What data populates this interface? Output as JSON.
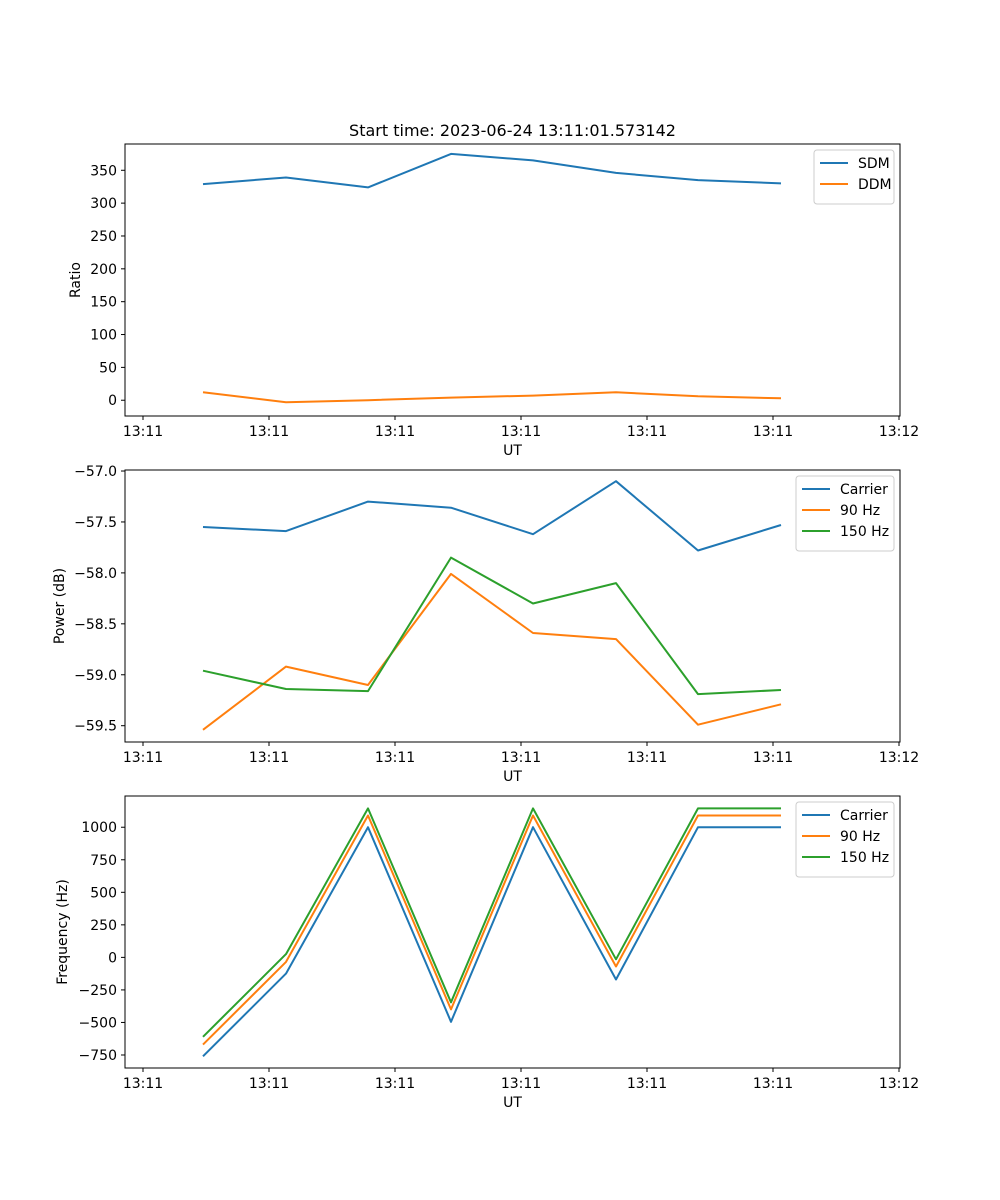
{
  "title": "Start time: 2023-06-24 13:11:01.573142",
  "chart_data": [
    {
      "type": "line",
      "xlabel": "UT",
      "ylabel": "Ratio",
      "x_tick_labels": [
        "13:11",
        "13:11",
        "13:11",
        "13:11",
        "13:11",
        "13:11",
        "13:12"
      ],
      "y_ticks": [
        0,
        50,
        100,
        150,
        200,
        250,
        300,
        350
      ],
      "ylim": [
        -24,
        390
      ],
      "legend_position": "top-right",
      "series": [
        {
          "name": "SDM",
          "color": "#1f77b4",
          "values": [
            329,
            339,
            324,
            375,
            365,
            346,
            335,
            330
          ]
        },
        {
          "name": "DDM",
          "color": "#ff7f0e",
          "values": [
            12,
            -3,
            0,
            4,
            7,
            12,
            6,
            3
          ]
        }
      ]
    },
    {
      "type": "line",
      "xlabel": "UT",
      "ylabel": "Power (dB)",
      "x_tick_labels": [
        "13:11",
        "13:11",
        "13:11",
        "13:11",
        "13:11",
        "13:11",
        "13:12"
      ],
      "y_ticks": [
        -59.5,
        -59.0,
        -58.5,
        -58.0,
        -57.5,
        -57.0
      ],
      "y_tick_labels": [
        "−59.5",
        "−59.0",
        "−58.5",
        "−58.0",
        "−57.5",
        "−57.0"
      ],
      "ylim": [
        -59.66,
        -56.99
      ],
      "legend_position": "top-right",
      "series": [
        {
          "name": "Carrier",
          "color": "#1f77b4",
          "values": [
            -57.55,
            -57.59,
            -57.3,
            -57.36,
            -57.62,
            -57.1,
            -57.78,
            -57.53
          ]
        },
        {
          "name": "90 Hz",
          "color": "#ff7f0e",
          "values": [
            -59.54,
            -58.92,
            -59.1,
            -58.01,
            -58.59,
            -58.65,
            -59.49,
            -59.29
          ]
        },
        {
          "name": "150 Hz",
          "color": "#2ca02c",
          "values": [
            -58.96,
            -59.14,
            -59.16,
            -57.85,
            -58.3,
            -58.1,
            -59.19,
            -59.15
          ]
        }
      ]
    },
    {
      "type": "line",
      "xlabel": "UT",
      "ylabel": "Frequency (Hz)",
      "x_tick_labels": [
        "13:11",
        "13:11",
        "13:11",
        "13:11",
        "13:11",
        "13:11",
        "13:12"
      ],
      "y_ticks": [
        -750,
        -500,
        -250,
        0,
        250,
        500,
        750,
        1000
      ],
      "y_tick_labels": [
        "−750",
        "−500",
        "−250",
        "0",
        "250",
        "500",
        "750",
        "1000"
      ],
      "ylim": [
        -850,
        1240
      ],
      "legend_position": "top-right",
      "series": [
        {
          "name": "Carrier",
          "color": "#1f77b4",
          "values": [
            -760,
            -125,
            1000,
            -495,
            1000,
            -170,
            1000,
            1000
          ]
        },
        {
          "name": "90 Hz",
          "color": "#ff7f0e",
          "values": [
            -670,
            -35,
            1090,
            -400,
            1090,
            -70,
            1090,
            1090
          ]
        },
        {
          "name": "150 Hz",
          "color": "#2ca02c",
          "values": [
            -610,
            25,
            1145,
            -345,
            1145,
            -15,
            1145,
            1145
          ]
        }
      ]
    }
  ]
}
